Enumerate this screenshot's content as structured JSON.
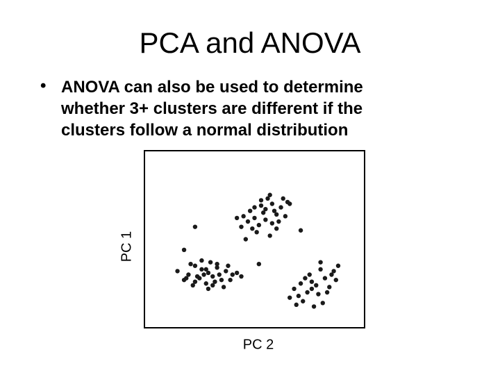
{
  "slide": {
    "title": "PCA and ANOVA",
    "bullet": "ANOVA can also be used to determine whether 3+ clusters are different if the clusters follow a normal distribution"
  },
  "chart_data": {
    "type": "scatter",
    "xlabel": "PC 2",
    "ylabel": "PC 1",
    "xlim": [
      0,
      100
    ],
    "ylim": [
      0,
      100
    ],
    "series": [
      {
        "color": "#1a1a1a",
        "x": [
          54,
          58,
          50,
          62,
          47,
          56,
          60,
          52,
          65,
          45,
          55,
          49,
          61,
          57,
          53,
          44,
          59,
          63,
          51,
          48,
          66,
          55,
          58,
          42,
          60,
          53,
          50,
          57,
          64,
          46,
          29,
          25,
          33,
          20,
          37,
          28,
          23,
          31,
          40,
          18,
          26,
          35,
          30,
          22,
          38,
          27,
          32,
          15,
          24,
          36,
          29,
          42,
          21,
          34,
          28,
          19,
          31,
          26,
          39,
          33,
          23,
          44,
          78,
          74,
          82,
          80,
          70,
          85,
          76,
          72,
          88,
          79,
          68,
          84,
          75,
          81,
          73,
          77,
          86,
          71,
          83,
          66,
          80,
          76,
          69,
          87,
          23,
          18,
          52,
          71
        ],
        "values": [
          65,
          70,
          62,
          68,
          60,
          73,
          64,
          58,
          71,
          63,
          67,
          56,
          60,
          75,
          69,
          57,
          66,
          73,
          54,
          66,
          70,
          61,
          59,
          62,
          56,
          72,
          68,
          52,
          63,
          50,
          31,
          28,
          34,
          30,
          32,
          25,
          35,
          29,
          30,
          27,
          33,
          27,
          37,
          24,
          35,
          30,
          26,
          32,
          29,
          23,
          22,
          31,
          36,
          30,
          33,
          28,
          24,
          38,
          27,
          36,
          26,
          29,
          24,
          20,
          28,
          33,
          18,
          30,
          26,
          15,
          35,
          19,
          22,
          23,
          30,
          14,
          28,
          12,
          32,
          25,
          20,
          17,
          37,
          22,
          13,
          27,
          57,
          44,
          36,
          55
        ]
      }
    ]
  }
}
